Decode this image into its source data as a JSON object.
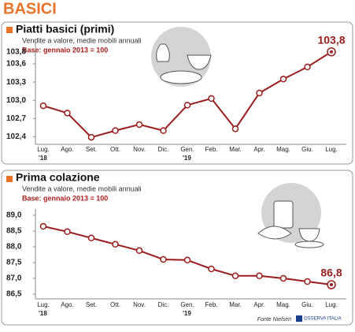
{
  "header": {
    "title": "BASICI"
  },
  "chart_data": [
    {
      "type": "line",
      "title": "Piatti basici (primi)",
      "subtitle": "Vendite a valore, medie mobili annuali",
      "note": "Base: gennaio 2013 = 100",
      "categories": [
        "Lug.",
        "Ago.",
        "Set.",
        "Ott.",
        "Nov.",
        "Dic.",
        "Gen.",
        "Feb.",
        "Mar.",
        "Apr.",
        "Mag.",
        "Giu.",
        "Lug."
      ],
      "year_labels": [
        "'18",
        null,
        null,
        null,
        null,
        null,
        "'19",
        null,
        null,
        null,
        null,
        null,
        null
      ],
      "values": [
        102.91,
        102.79,
        102.39,
        102.5,
        102.6,
        102.5,
        102.92,
        103.03,
        102.53,
        103.12,
        103.35,
        103.55,
        103.8
      ],
      "value_labels": [
        null,
        null,
        null,
        null,
        null,
        null,
        null,
        null,
        null,
        null,
        null,
        null,
        "103,8"
      ],
      "color": "#9b1c1c",
      "ylim": [
        102.3,
        103.9
      ],
      "yticks": [
        {
          "value": 102.4,
          "label": "102,4"
        },
        {
          "value": 102.7,
          "label": "102,7"
        },
        {
          "value": 103.0,
          "label": "103,0"
        },
        {
          "value": 103.3,
          "label": "103,3"
        },
        {
          "value": 103.6,
          "label": "103,6"
        },
        {
          "value": 103.8,
          "label": "103,8"
        }
      ]
    },
    {
      "type": "line",
      "title": "Prima colazione",
      "subtitle": "Vendite a valore, medie mobili annuali",
      "note": "Base: gennaio 2013 = 100",
      "categories": [
        "Lug.",
        "Ago.",
        "Set.",
        "Ott.",
        "Nov.",
        "Dic.",
        "Gen.",
        "Feb.",
        "Mar.",
        "Apr.",
        "Mag.",
        "Giu.",
        "Lug."
      ],
      "year_labels": [
        "'18",
        null,
        null,
        null,
        null,
        null,
        "'19",
        null,
        null,
        null,
        null,
        null,
        null
      ],
      "values": [
        88.65,
        88.48,
        88.28,
        88.08,
        87.88,
        87.6,
        87.58,
        87.3,
        87.08,
        87.08,
        87.0,
        86.9,
        86.8
      ],
      "value_labels": [
        null,
        null,
        null,
        null,
        null,
        null,
        null,
        null,
        null,
        null,
        null,
        null,
        "86,8"
      ],
      "color": "#9b1c1c",
      "ylim": [
        86.4,
        89.1
      ],
      "yticks": [
        {
          "value": 86.5,
          "label": "86,5"
        },
        {
          "value": 87.0,
          "label": "87,0"
        },
        {
          "value": 87.5,
          "label": "87,5"
        },
        {
          "value": 88.0,
          "label": "88,0"
        },
        {
          "value": 88.5,
          "label": "88,5"
        },
        {
          "value": 89.0,
          "label": "89,0"
        }
      ]
    }
  ],
  "footer": {
    "source": "Fonte Nielsen",
    "logo": "OSSERVA ITALIA"
  }
}
